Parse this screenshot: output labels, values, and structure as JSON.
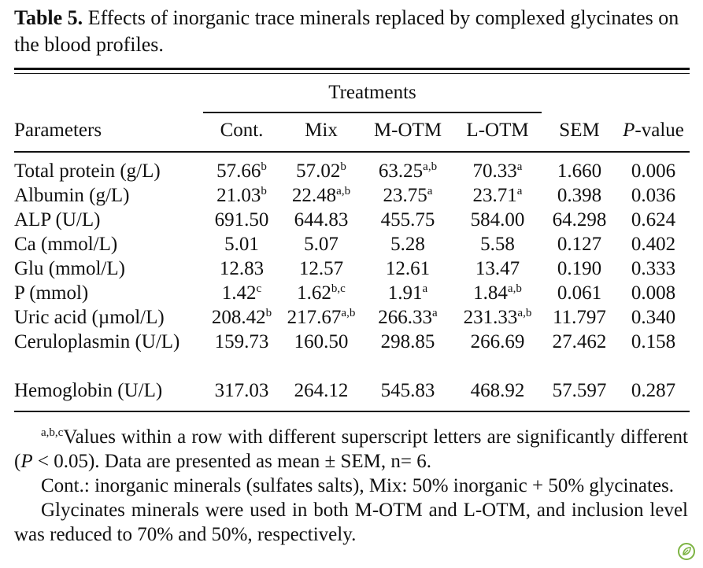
{
  "caption": {
    "label": "Table 5.",
    "text": " Effects of inorganic trace minerals replaced by complexed glycinates on the blood profiles."
  },
  "table": {
    "group_header": "Treatments",
    "columns": {
      "parameters": "Parameters",
      "cont": "Cont.",
      "mix": "Mix",
      "motm": "M-OTM",
      "lotm": "L-OTM",
      "sem": "SEM",
      "p_italic": "P",
      "p_rest": "-value"
    },
    "rows": [
      {
        "param": "Total protein (g/L)",
        "cont": "57.66",
        "cont_sup": "b",
        "mix": "57.02",
        "mix_sup": "b",
        "motm": "63.25",
        "motm_sup": "a,b",
        "lotm": "70.33",
        "lotm_sup": "a",
        "sem": "1.660",
        "p": "0.006"
      },
      {
        "param": "Albumin (g/L)",
        "cont": "21.03",
        "cont_sup": "b",
        "mix": "22.48",
        "mix_sup": "a,b",
        "motm": "23.75",
        "motm_sup": "a",
        "lotm": "23.71",
        "lotm_sup": "a",
        "sem": "0.398",
        "p": "0.036"
      },
      {
        "param": "ALP (U/L)",
        "cont": "691.50",
        "cont_sup": "",
        "mix": "644.83",
        "mix_sup": "",
        "motm": "455.75",
        "motm_sup": "",
        "lotm": "584.00",
        "lotm_sup": "",
        "sem": "64.298",
        "p": "0.624"
      },
      {
        "param": "Ca (mmol/L)",
        "cont": "5.01",
        "cont_sup": "",
        "mix": "5.07",
        "mix_sup": "",
        "motm": "5.28",
        "motm_sup": "",
        "lotm": "5.58",
        "lotm_sup": "",
        "sem": "0.127",
        "p": "0.402"
      },
      {
        "param": "Glu (mmol/L)",
        "cont": "12.83",
        "cont_sup": "",
        "mix": "12.57",
        "mix_sup": "",
        "motm": "12.61",
        "motm_sup": "",
        "lotm": "13.47",
        "lotm_sup": "",
        "sem": "0.190",
        "p": "0.333"
      },
      {
        "param": "P (mmol)",
        "cont": "1.42",
        "cont_sup": "c",
        "mix": "1.62",
        "mix_sup": "b,c",
        "motm": "1.91",
        "motm_sup": "a",
        "lotm": "1.84",
        "lotm_sup": "a,b",
        "sem": "0.061",
        "p": "0.008"
      },
      {
        "param": "Uric acid (µmol/L)",
        "cont": "208.42",
        "cont_sup": "b",
        "mix": "217.67",
        "mix_sup": "a,b",
        "motm": "266.33",
        "motm_sup": "a",
        "lotm": "231.33",
        "lotm_sup": "a,b",
        "sem": "11.797",
        "p": "0.340"
      },
      {
        "param": "Ceruloplasmin (U/L)",
        "cont": "159.73",
        "cont_sup": "",
        "mix": "160.50",
        "mix_sup": "",
        "motm": "298.85",
        "motm_sup": "",
        "lotm": "266.69",
        "lotm_sup": "",
        "sem": "27.462",
        "p": "0.158"
      },
      {
        "param": "Hemoglobin (U/L)",
        "cont": "317.03",
        "cont_sup": "",
        "mix": "264.12",
        "mix_sup": "",
        "motm": "545.83",
        "motm_sup": "",
        "lotm": "468.92",
        "lotm_sup": "",
        "sem": "57.597",
        "p": "0.287"
      }
    ]
  },
  "notes": {
    "note1_sup": "a,b,c",
    "note1_a": "Values within a row with different superscript letters are significantly different (",
    "note1_p": "P",
    "note1_b": " < 0.05). Data are presented as mean ± SEM, n= 6.",
    "note2": "Cont.: inorganic minerals (sulfates salts), Mix: 50% inorganic + 50% glycinates.",
    "note3": "Glycinates minerals were used in both M-OTM and L-OTM, and inclusion level was reduced to 70% and 50%, respectively."
  },
  "badge": {
    "icon": "leaf-icon",
    "color": "#7cb342"
  }
}
